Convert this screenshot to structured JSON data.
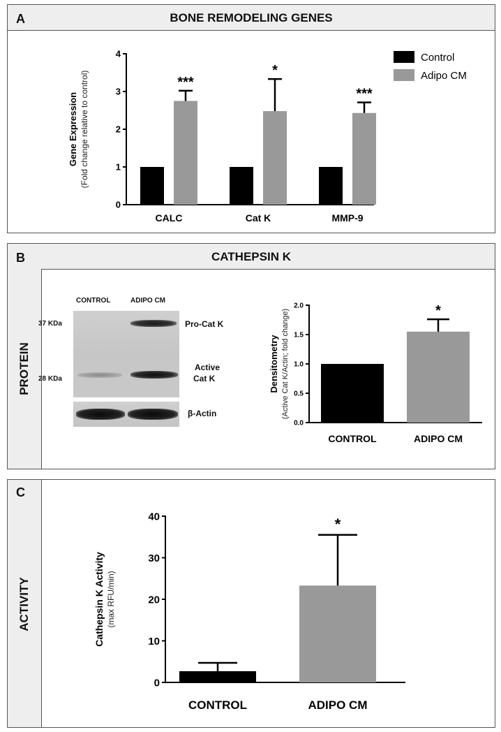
{
  "panel_a": {
    "letter": "A",
    "title": "BONE REMODELING GENES"
  },
  "panel_b": {
    "letter": "B",
    "title": "CATHEPSIN K",
    "side_label": "PROTEIN",
    "blot": {
      "lane_labels": [
        "CONTROL",
        "ADIPO CM"
      ],
      "mw_markers": [
        "37 KDa",
        "28 KDa"
      ],
      "band_labels": [
        "Pro-Cat K",
        "Active",
        "Cat K"
      ],
      "loading_label": "β-Actin"
    }
  },
  "panel_c": {
    "letter": "C",
    "side_label": "ACTIVITY"
  },
  "chart_data": [
    {
      "type": "bar",
      "id": "gene-expression",
      "categories": [
        "CALC",
        "Cat K",
        "MMP-9"
      ],
      "series": [
        {
          "name": "Control",
          "values": [
            1,
            1,
            1
          ],
          "errors": [
            0,
            0,
            0
          ],
          "color": "#000000"
        },
        {
          "name": "Adipo CM",
          "values": [
            2.75,
            2.48,
            2.43
          ],
          "errors": [
            0.27,
            0.85,
            0.28
          ],
          "color": "#999999"
        }
      ],
      "significance": [
        "***",
        "*",
        "***"
      ],
      "ylabel": "Gene Expression",
      "ylabel_sub": "(Fold change relative to control)",
      "ylim": [
        0,
        4
      ],
      "yticks": [
        0,
        1,
        2,
        3,
        4
      ],
      "legend": "top-right",
      "grid": false
    },
    {
      "type": "bar",
      "id": "densitometry",
      "categories": [
        "CONTROL",
        "ADIPO CM"
      ],
      "values": [
        1.0,
        1.55
      ],
      "errors": [
        0,
        0.21
      ],
      "colors": [
        "#000000",
        "#999999"
      ],
      "significance": [
        "",
        "*"
      ],
      "ylabel": "Densitometry",
      "ylabel_sub": "(Active Cat K/Actin; fold change)",
      "ylim": [
        0,
        2.0
      ],
      "yticks": [
        "0.0",
        "0.5",
        "1.0",
        "1.5",
        "2.0"
      ],
      "grid": false
    },
    {
      "type": "bar",
      "id": "activity",
      "categories": [
        "CONTROL",
        "ADIPO CM"
      ],
      "values": [
        2.7,
        23.3
      ],
      "errors": [
        2.0,
        12.2
      ],
      "colors": [
        "#000000",
        "#999999"
      ],
      "significance": [
        "",
        "*"
      ],
      "ylabel": "Cathepsin K Activity",
      "ylabel_sub": "(max RFU/min)",
      "ylim": [
        0,
        40
      ],
      "yticks": [
        0,
        10,
        20,
        30,
        40
      ],
      "grid": false
    }
  ]
}
